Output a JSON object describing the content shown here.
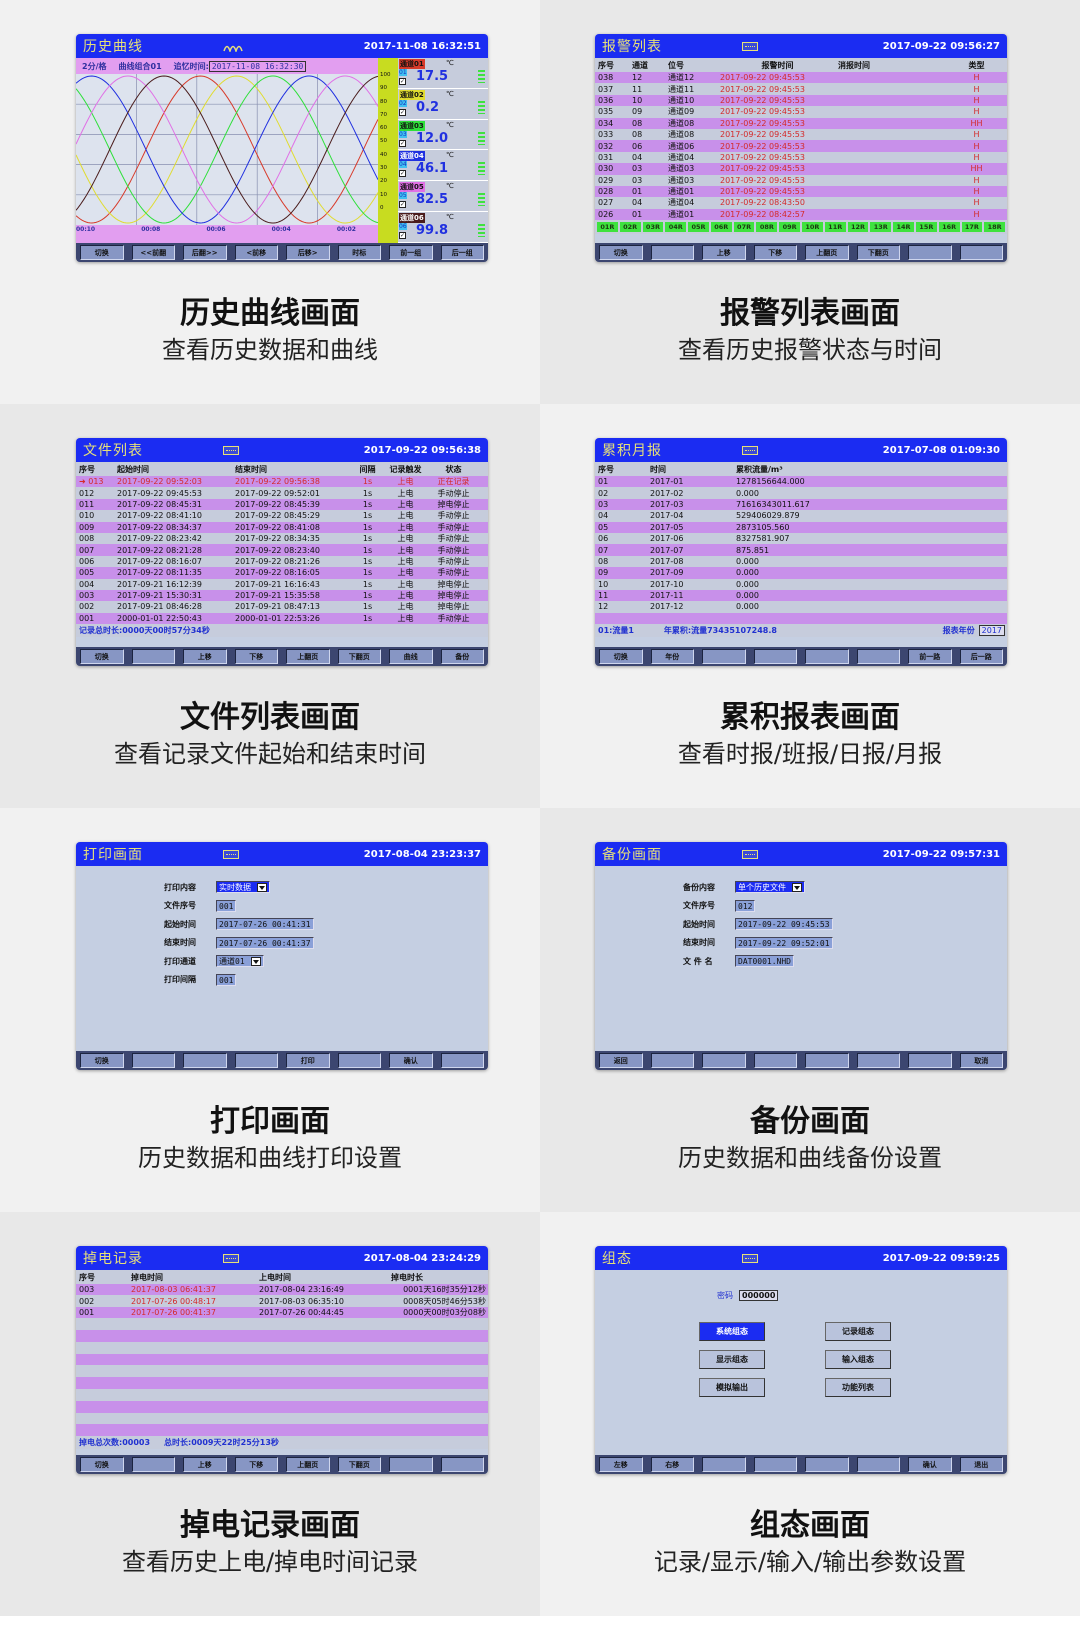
{
  "panels": [
    {
      "caption": {
        "title": "历史曲线画面",
        "subtitle": "查看历史数据和曲线"
      },
      "screen": {
        "title": "历史曲线",
        "datetime": "2017-11-08 16:32:51",
        "info": {
          "scale": "2分/格",
          "group": "曲线组合01",
          "recall_label": "追忆时间:",
          "recall_time": "2017-11-08  16:32:30"
        },
        "time_labels": [
          "00:10",
          "00:08",
          "00:06",
          "00:04",
          "00:02"
        ],
        "y_ticks": [
          "100",
          "90",
          "80",
          "70",
          "60",
          "50",
          "40",
          "30",
          "20",
          "10",
          "0"
        ],
        "channels": [
          {
            "name": "通道01",
            "no": "01",
            "value": "17.5",
            "unit": "℃",
            "color": "#d83a2a"
          },
          {
            "name": "通道02",
            "no": "02",
            "value": "0.2",
            "unit": "℃",
            "color": "#e0dc30"
          },
          {
            "name": "通道03",
            "no": "03",
            "value": "12.0",
            "unit": "℃",
            "color": "#2ee03a"
          },
          {
            "name": "通道04",
            "no": "04",
            "value": "46.1",
            "unit": "℃",
            "color": "#2030e0"
          },
          {
            "name": "通道05",
            "no": "05",
            "value": "82.5",
            "unit": "℃",
            "color": "#e070e6"
          },
          {
            "name": "通道06",
            "no": "06",
            "value": "99.8",
            "unit": "℃",
            "color": "#4a1c1c"
          }
        ],
        "buttons": [
          "切换",
          "<<前翻",
          "后翻>>",
          "<前移",
          "后移>",
          "时标",
          "前一组",
          "后一组"
        ]
      }
    },
    {
      "caption": {
        "title": "报警列表画面",
        "subtitle": "查看历史报警状态与时间"
      },
      "screen": {
        "title": "报警列表",
        "datetime": "2017-09-22 09:56:27",
        "headers": [
          "序号",
          "通道",
          "位号",
          "报警时间",
          "消报时间",
          "类型"
        ],
        "rows": [
          [
            "038",
            "12",
            "通道12",
            "2017-09-22 09:45:53",
            "",
            "H"
          ],
          [
            "037",
            "11",
            "通道11",
            "2017-09-22 09:45:53",
            "",
            "H"
          ],
          [
            "036",
            "10",
            "通道10",
            "2017-09-22 09:45:53",
            "",
            "H"
          ],
          [
            "035",
            "09",
            "通道09",
            "2017-09-22 09:45:53",
            "",
            "H"
          ],
          [
            "034",
            "08",
            "通道08",
            "2017-09-22 09:45:53",
            "",
            "HH"
          ],
          [
            "033",
            "08",
            "通道08",
            "2017-09-22 09:45:53",
            "",
            "H"
          ],
          [
            "032",
            "06",
            "通道06",
            "2017-09-22 09:45:53",
            "",
            "H"
          ],
          [
            "031",
            "04",
            "通道04",
            "2017-09-22 09:45:53",
            "",
            "H"
          ],
          [
            "030",
            "03",
            "通道03",
            "2017-09-22 09:45:53",
            "",
            "HH"
          ],
          [
            "029",
            "03",
            "通道03",
            "2017-09-22 09:45:53",
            "",
            "H"
          ],
          [
            "028",
            "01",
            "通道01",
            "2017-09-22 09:45:53",
            "",
            "H"
          ],
          [
            "027",
            "04",
            "通道04",
            "2017-09-22 08:43:50",
            "",
            "H"
          ],
          [
            "026",
            "01",
            "通道01",
            "2017-09-22 08:42:57",
            "",
            "H"
          ]
        ],
        "relays": [
          "01R",
          "02R",
          "03R",
          "04R",
          "05R",
          "06R",
          "07R",
          "08R",
          "09R",
          "10R",
          "11R",
          "12R",
          "13R",
          "14R",
          "15R",
          "16R",
          "17R",
          "18R"
        ],
        "buttons": [
          "切换",
          "",
          "上移",
          "下移",
          "上翻页",
          "下翻页",
          "",
          ""
        ]
      }
    },
    {
      "caption": {
        "title": "文件列表画面",
        "subtitle": "查看记录文件起始和结束时间"
      },
      "screen": {
        "title": "文件列表",
        "datetime": "2017-09-22 09:56:38",
        "headers": [
          "序号",
          "起始时间",
          "结束时间",
          "间隔",
          "记录触发",
          "状态"
        ],
        "rows": [
          [
            "➜ 013",
            "2017-09-22 09:52:03",
            "2017-09-22 09:56:38",
            "1s",
            "上电",
            "正在记录"
          ],
          [
            "012",
            "2017-09-22 09:45:53",
            "2017-09-22 09:52:01",
            "1s",
            "上电",
            "手动停止"
          ],
          [
            "011",
            "2017-09-22 08:45:31",
            "2017-09-22 08:45:39",
            "1s",
            "上电",
            "掉电停止"
          ],
          [
            "010",
            "2017-09-22 08:41:10",
            "2017-09-22 08:45:29",
            "1s",
            "上电",
            "手动停止"
          ],
          [
            "009",
            "2017-09-22 08:34:37",
            "2017-09-22 08:41:08",
            "1s",
            "上电",
            "手动停止"
          ],
          [
            "008",
            "2017-09-22 08:23:42",
            "2017-09-22 08:34:35",
            "1s",
            "上电",
            "手动停止"
          ],
          [
            "007",
            "2017-09-22 08:21:28",
            "2017-09-22 08:23:40",
            "1s",
            "上电",
            "手动停止"
          ],
          [
            "006",
            "2017-09-22 08:16:07",
            "2017-09-22 08:21:26",
            "1s",
            "上电",
            "手动停止"
          ],
          [
            "005",
            "2017-09-22 08:11:35",
            "2017-09-22 08:16:05",
            "1s",
            "上电",
            "手动停止"
          ],
          [
            "004",
            "2017-09-21 16:12:39",
            "2017-09-21 16:16:43",
            "1s",
            "上电",
            "掉电停止"
          ],
          [
            "003",
            "2017-09-21 15:30:31",
            "2017-09-21 15:35:58",
            "1s",
            "上电",
            "掉电停止"
          ],
          [
            "002",
            "2017-09-21 08:46:28",
            "2017-09-21 08:47:13",
            "1s",
            "上电",
            "掉电停止"
          ],
          [
            "001",
            "2000-01-01 22:50:43",
            "2000-01-01 22:53:26",
            "1s",
            "上电",
            "手动停止"
          ]
        ],
        "footer": "记录总时长:0000天00时57分34秒",
        "buttons": [
          "切换",
          "",
          "上移",
          "下移",
          "上翻页",
          "下翻页",
          "曲线",
          "备份"
        ]
      }
    },
    {
      "caption": {
        "title": "累积报表画面",
        "subtitle": "查看时报/班报/日报/月报"
      },
      "screen": {
        "title": "累积月报",
        "datetime": "2017-07-08 01:09:30",
        "headers": [
          "序号",
          "时间",
          "累积流量/m³"
        ],
        "rows": [
          [
            "01",
            "2017-01",
            "1278156644.000"
          ],
          [
            "02",
            "2017-02",
            "0.000"
          ],
          [
            "03",
            "2017-03",
            "71616343011.617"
          ],
          [
            "04",
            "2017-04",
            "529406029.879"
          ],
          [
            "05",
            "2017-05",
            "2873105.560"
          ],
          [
            "06",
            "2017-06",
            "8327581.907"
          ],
          [
            "07",
            "2017-07",
            "875.851"
          ],
          [
            "08",
            "2017-08",
            "0.000"
          ],
          [
            "09",
            "2017-09",
            "0.000"
          ],
          [
            "10",
            "2017-10",
            "0.000"
          ],
          [
            "11",
            "2017-11",
            "0.000"
          ],
          [
            "12",
            "2017-12",
            "0.000"
          ]
        ],
        "footer": {
          "channel": "01:流量1",
          "annual": "年累积:流量73435107248.8",
          "year_label": "报表年份",
          "year": "2017"
        },
        "buttons": [
          "切换",
          "年份",
          "",
          "",
          "",
          "",
          "前一路",
          "后一路"
        ]
      }
    },
    {
      "caption": {
        "title": "打印画面",
        "subtitle": "历史数据和曲线打印设置"
      },
      "screen": {
        "title": "打印画面",
        "datetime": "2017-08-04 23:23:37",
        "fields": [
          {
            "label": "打印内容",
            "value": "实时数据",
            "type": "select"
          },
          {
            "label": "文件序号",
            "value": "001",
            "type": "text"
          },
          {
            "label": "起始时间",
            "value": "2017-07-26  00:41:31",
            "type": "text"
          },
          {
            "label": "结束时间",
            "value": "2017-07-26  00:41:37",
            "type": "text"
          },
          {
            "label": "打印通道",
            "value": "通道01",
            "type": "select"
          },
          {
            "label": "打印间隔",
            "value": "001",
            "type": "text"
          }
        ],
        "buttons": [
          "切换",
          "",
          "",
          "",
          "打印",
          "",
          "确认",
          ""
        ]
      }
    },
    {
      "caption": {
        "title": "备份画面",
        "subtitle": "历史数据和曲线备份设置"
      },
      "screen": {
        "title": "备份画面",
        "datetime": "2017-09-22 09:57:31",
        "fields": [
          {
            "label": "备份内容",
            "value": "单个历史文件",
            "type": "select"
          },
          {
            "label": "文件序号",
            "value": "012",
            "type": "text"
          },
          {
            "label": "起始时间",
            "value": "2017-09-22  09:45:53",
            "type": "text"
          },
          {
            "label": "结束时间",
            "value": "2017-09-22  09:52:01",
            "type": "text"
          },
          {
            "label": "文 件 名",
            "value": "DAT0001.NHD",
            "type": "text"
          }
        ],
        "buttons": [
          "返回",
          "",
          "",
          "",
          "",
          "",
          "",
          "取消"
        ]
      }
    },
    {
      "caption": {
        "title": "掉电记录画面",
        "subtitle": "查看历史上电/掉电时间记录"
      },
      "screen": {
        "title": "掉电记录",
        "datetime": "2017-08-04 23:24:29",
        "headers": [
          "序号",
          "掉电时间",
          "上电时间",
          "掉电时长"
        ],
        "rows": [
          [
            "003",
            "2017-08-03 06:41:37",
            "2017-08-04 23:16:49",
            "0001天16时35分12秒"
          ],
          [
            "002",
            "2017-07-26 00:48:17",
            "2017-08-03 06:35:10",
            "0008天05时46分53秒"
          ],
          [
            "001",
            "2017-07-26 00:41:37",
            "2017-07-26 00:44:45",
            "0000天00时03分08秒"
          ]
        ],
        "footer": {
          "count": "掉电总次数:00003",
          "total": "总时长:0009天22时25分13秒"
        },
        "buttons": [
          "切换",
          "",
          "上移",
          "下移",
          "上翻页",
          "下翻页",
          "",
          ""
        ]
      }
    },
    {
      "caption": {
        "title": "组态画面",
        "subtitle": "记录/显示/输入/输出参数设置"
      },
      "screen": {
        "title": "组态",
        "datetime": "2017-09-22 09:59:25",
        "password_label": "密码",
        "password": "000000",
        "menu": [
          {
            "label": "系统组态",
            "selected": true
          },
          {
            "label": "记录组态",
            "selected": false
          },
          {
            "label": "显示组态",
            "selected": false
          },
          {
            "label": "输入组态",
            "selected": false
          },
          {
            "label": "模拟输出",
            "selected": false
          },
          {
            "label": "功能列表",
            "selected": false
          }
        ],
        "buttons": [
          "左移",
          "右移",
          "",
          "",
          "",
          "",
          "确认",
          "退出"
        ]
      }
    }
  ]
}
